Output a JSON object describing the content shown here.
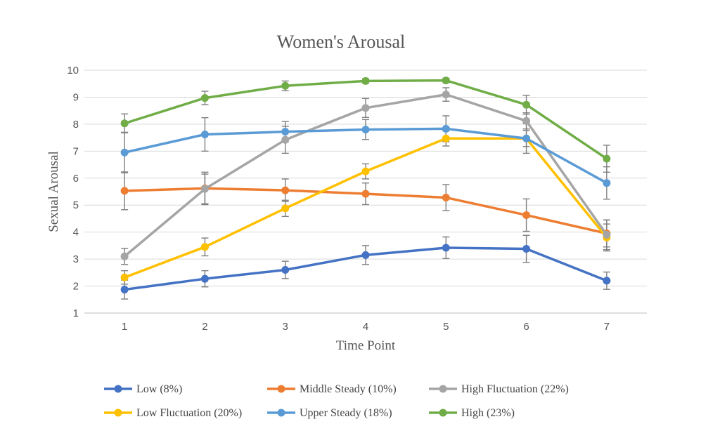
{
  "chart_data": {
    "type": "line",
    "title": "Women's Arousal",
    "xlabel": "Time Point",
    "ylabel": "Sexual Arousal",
    "categories": [
      "1",
      "2",
      "3",
      "4",
      "5",
      "6",
      "7"
    ],
    "yticks": [
      "1",
      "2",
      "3",
      "4",
      "5",
      "6",
      "7",
      "8",
      "9",
      "10"
    ],
    "ylim": [
      1,
      10
    ],
    "grid": true,
    "legend": "bottom",
    "series": [
      {
        "name": "Low (8%)",
        "color": "#4472c4",
        "values": [
          1.87,
          2.27,
          2.6,
          3.15,
          3.42,
          3.38,
          2.2
        ],
        "error": [
          0.35,
          0.3,
          0.32,
          0.35,
          0.4,
          0.5,
          0.32
        ]
      },
      {
        "name": "Middle Steady (10%)",
        "color": "#ed7d31",
        "values": [
          5.53,
          5.62,
          5.55,
          5.42,
          5.28,
          4.63,
          3.95
        ],
        "error": [
          0.7,
          0.6,
          0.42,
          0.4,
          0.48,
          0.6,
          0.5
        ]
      },
      {
        "name": "High Fluctuation (22%)",
        "color": "#a5a5a5",
        "values": [
          3.1,
          5.6,
          7.42,
          8.6,
          9.1,
          8.12,
          3.9
        ],
        "error": [
          0.3,
          0.55,
          0.5,
          0.35,
          0.25,
          0.3,
          0.55
        ]
      },
      {
        "name": "Low Fluctuation (20%)",
        "color": "#ffc000",
        "values": [
          2.32,
          3.45,
          4.88,
          6.25,
          7.47,
          7.47,
          3.8
        ],
        "error": [
          0.25,
          0.33,
          0.3,
          0.28,
          0.28,
          0.3,
          0.5
        ]
      },
      {
        "name": "Upper Steady (18%)",
        "color": "#5b9bd5",
        "values": [
          6.95,
          7.62,
          7.72,
          7.8,
          7.83,
          7.47,
          5.82
        ],
        "error": [
          0.75,
          0.62,
          0.38,
          0.37,
          0.48,
          0.55,
          0.6
        ]
      },
      {
        "name": "High (23%)",
        "color": "#70ad47",
        "values": [
          8.03,
          8.97,
          9.42,
          9.6,
          9.62,
          8.72,
          6.72
        ],
        "error": [
          0.35,
          0.25,
          0.18,
          0.08,
          0.08,
          0.35,
          0.5
        ]
      }
    ]
  }
}
